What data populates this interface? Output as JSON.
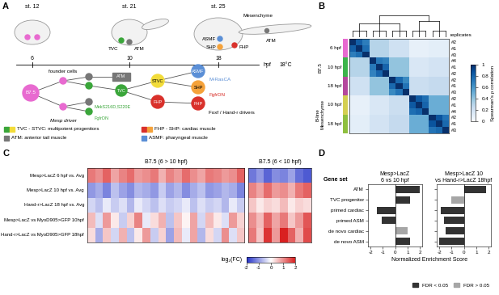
{
  "diagram": {
    "panel": "A",
    "stages": [
      {
        "label": "st. 12",
        "hpf": 6,
        "cells": []
      },
      {
        "label": "st. 21",
        "hpf": 10,
        "cells": [
          "TVC",
          "ATM"
        ]
      },
      {
        "label": "st. 25",
        "hpf": 18,
        "cells": [
          "Mesenchyme",
          "ATM",
          "ASMF",
          "SHP",
          "FHP"
        ]
      }
    ],
    "timeline_unit": "hpf",
    "temperature": "18°C",
    "lineage": {
      "root": "B7.5",
      "founder_label": "founder cells",
      "nodes": {
        "atm": "ATM",
        "tvc": "TVC",
        "stvc": "STVC",
        "fhp1": "FHP",
        "asmf": "ASMF",
        "shp": "SHP",
        "fhp2": "FHP"
      }
    },
    "perturbations": {
      "mek": "MekS216D,S220E",
      "fgfr1": "FgfrDN",
      "mesp": "Mesp driver",
      "mras": "M-RasCA",
      "fgfr2": "FgfrDN",
      "foxf": "Foxf / Hand-r drivers"
    },
    "legend": [
      {
        "label": "TVC - STVC: multipotent progenitors",
        "colors": [
          "#3aa63a",
          "#f2dc3a"
        ]
      },
      {
        "label": "FHP - SHP: cardiac muscle",
        "colors": [
          "#d9312b",
          "#f5a23a"
        ]
      },
      {
        "label": "ATM: anterior tail muscle",
        "colors": [
          "#777777"
        ]
      },
      {
        "label": "ASMF: pharyngeal muscle",
        "colors": [
          "#5b8fd6"
        ]
      }
    ]
  },
  "chart_data": [
    {
      "panel": "B",
      "type": "heatmap",
      "replicate_title": "replicates",
      "rows": [
        {
          "group": "B7.5",
          "label": "6 hpf",
          "color": "#e86ad0",
          "replicates": [
            "#2",
            "#1",
            "#3"
          ]
        },
        {
          "group": "B7.5",
          "label": "10 hpf",
          "color": "#3cb44b",
          "replicates": [
            "#4",
            "#1",
            "#2"
          ]
        },
        {
          "group": "B7.5",
          "label": "18 hpf",
          "color": "#b5489d",
          "replicates": [
            "#2",
            "#1",
            "#3"
          ]
        },
        {
          "group": "B-line\nMesenchyme",
          "label": "10 hpf",
          "color": "#d4cf52",
          "replicates": [
            "#2",
            "#1",
            "#4"
          ]
        },
        {
          "group": "B-line\nMesenchyme",
          "label": "18 hpf",
          "color": "#8fbf3f",
          "replicates": [
            "#2",
            "#1",
            "#3"
          ]
        }
      ],
      "cells": [
        [
          1,
          0.82,
          0.7,
          0.3,
          0.3,
          0.3,
          0.2,
          0.2,
          0.2,
          0.08,
          0.08,
          0.08,
          0.1,
          0.1,
          0.1
        ],
        [
          0.82,
          1,
          0.76,
          0.3,
          0.3,
          0.3,
          0.2,
          0.2,
          0.2,
          0.08,
          0.08,
          0.08,
          0.1,
          0.1,
          0.1
        ],
        [
          0.7,
          0.76,
          1,
          0.3,
          0.3,
          0.3,
          0.2,
          0.2,
          0.2,
          0.08,
          0.08,
          0.08,
          0.1,
          0.1,
          0.1
        ],
        [
          0.3,
          0.3,
          0.3,
          1,
          0.72,
          0.68,
          0.4,
          0.4,
          0.4,
          0.15,
          0.15,
          0.15,
          0.18,
          0.18,
          0.18
        ],
        [
          0.3,
          0.3,
          0.3,
          0.72,
          1,
          0.8,
          0.4,
          0.4,
          0.4,
          0.15,
          0.15,
          0.15,
          0.18,
          0.18,
          0.18
        ],
        [
          0.3,
          0.3,
          0.3,
          0.68,
          0.8,
          1,
          0.4,
          0.4,
          0.4,
          0.15,
          0.15,
          0.15,
          0.18,
          0.18,
          0.18
        ],
        [
          0.2,
          0.2,
          0.2,
          0.4,
          0.4,
          0.4,
          1,
          0.78,
          0.66,
          0.22,
          0.22,
          0.22,
          0.25,
          0.25,
          0.25
        ],
        [
          0.2,
          0.2,
          0.2,
          0.4,
          0.4,
          0.4,
          0.78,
          1,
          0.74,
          0.22,
          0.22,
          0.22,
          0.25,
          0.25,
          0.25
        ],
        [
          0.2,
          0.2,
          0.2,
          0.4,
          0.4,
          0.4,
          0.66,
          0.74,
          1,
          0.22,
          0.22,
          0.22,
          0.25,
          0.25,
          0.25
        ],
        [
          0.08,
          0.08,
          0.08,
          0.15,
          0.15,
          0.15,
          0.22,
          0.22,
          0.22,
          1,
          0.84,
          0.76,
          0.5,
          0.5,
          0.5
        ],
        [
          0.08,
          0.08,
          0.08,
          0.15,
          0.15,
          0.15,
          0.22,
          0.22,
          0.22,
          0.84,
          1,
          0.8,
          0.5,
          0.5,
          0.5
        ],
        [
          0.08,
          0.08,
          0.08,
          0.15,
          0.15,
          0.15,
          0.22,
          0.22,
          0.22,
          0.76,
          0.8,
          1,
          0.5,
          0.5,
          0.5
        ],
        [
          0.1,
          0.1,
          0.1,
          0.18,
          0.18,
          0.18,
          0.25,
          0.25,
          0.25,
          0.5,
          0.5,
          0.5,
          1,
          0.86,
          0.74
        ],
        [
          0.1,
          0.1,
          0.1,
          0.18,
          0.18,
          0.18,
          0.25,
          0.25,
          0.25,
          0.5,
          0.5,
          0.5,
          0.86,
          1,
          0.78
        ],
        [
          0.1,
          0.1,
          0.1,
          0.18,
          0.18,
          0.18,
          0.25,
          0.25,
          0.25,
          0.5,
          0.5,
          0.5,
          0.74,
          0.78,
          1
        ]
      ],
      "colorbar": {
        "label": "Spearman's ρ correlation",
        "range": [
          0,
          1
        ],
        "ticks": [
          0,
          0.2,
          0.4,
          0.6,
          0.8,
          1
        ]
      }
    },
    {
      "panel": "C",
      "type": "heatmap",
      "rows": [
        "Mesp>LacZ 6 hpf vs. Avg",
        "Mesp>LacZ 10 hpf vs. Avg",
        "Hand-r>LacZ 18 hpf vs. Avg",
        "Mesp>LacZ vs MyoD905>GFP 10hpf",
        "Hand-r>LacZ vs MyoD905>GFP 18hpf"
      ],
      "blocks": [
        {
          "title": "B7.5 (6 > 10 hpf)",
          "cells": [
            [
              1.2,
              1.0,
              1.4,
              0.8,
              1.1,
              1.3,
              0.9,
              1.0,
              1.2,
              0.7,
              1.1,
              0.9,
              1.3,
              1.0,
              0.8,
              1.2,
              1.1,
              0.9,
              1.0,
              1.4
            ],
            [
              -1.0,
              -0.8,
              -1.2,
              -0.6,
              -0.9,
              -1.1,
              -0.7,
              -0.8,
              -1.0,
              -0.5,
              -0.9,
              -0.7,
              -1.1,
              -0.8,
              -0.6,
              -1.0,
              -0.9,
              -0.7,
              -0.8,
              -1.2
            ],
            [
              -0.4,
              -0.6,
              -0.2,
              -0.5,
              -0.3,
              -0.7,
              -0.2,
              -0.4,
              -0.6,
              -0.3,
              -0.5,
              -0.4,
              -0.2,
              -0.6,
              -0.3,
              -0.5,
              -0.4,
              -0.7,
              -0.2,
              -0.5
            ],
            [
              0.6,
              -0.3,
              0.9,
              0.2,
              -0.5,
              0.4,
              1.1,
              -0.2,
              0.3,
              0.7,
              -0.6,
              0.5,
              0.1,
              0.8,
              -0.4,
              0.6,
              0.2,
              -0.3,
              0.9,
              0.4
            ],
            [
              0.3,
              -0.8,
              0.5,
              -0.4,
              0.7,
              -0.6,
              0.2,
              0.9,
              -0.5,
              0.4,
              -0.9,
              0.6,
              -0.2,
              0.8,
              -0.7,
              0.3,
              -0.4,
              1.0,
              -0.3,
              0.5
            ]
          ]
        },
        {
          "title": "B7.5 (6 < 10 hpf)",
          "cells": [
            [
              -1.3,
              -1.0,
              -1.5,
              -1.1,
              -1.2,
              -0.9,
              -1.4,
              -1.6
            ],
            [
              1.1,
              0.8,
              1.3,
              0.9,
              1.0,
              0.7,
              1.2,
              1.4
            ],
            [
              0.5,
              0.2,
              0.4,
              0.3,
              0.6,
              0.2,
              0.4,
              0.3
            ],
            [
              1.0,
              0.6,
              1.4,
              0.8,
              1.2,
              0.5,
              0.9,
              1.5
            ],
            [
              1.2,
              0.5,
              1.8,
              0.9,
              2.0,
              1.4,
              0.7,
              1.6
            ]
          ]
        }
      ],
      "colorbar": {
        "label": "log₂(FC)",
        "range": [
          -2,
          2
        ],
        "ticks": [
          -2,
          -1,
          0,
          1,
          2
        ]
      }
    },
    {
      "panel": "D",
      "type": "bar",
      "orientation": "horizontal",
      "y_label": "Gene set",
      "x_label": "Normalized Enrichment Score",
      "categories": [
        "ATM",
        "TVC progenitor",
        "primed cardiac",
        "primed ASM",
        "de novo cardiac",
        "de novo ASM"
      ],
      "legend": "lower right",
      "legend_entries": [
        {
          "name": "FDR < 0.05",
          "color": "#333333"
        },
        {
          "name": "FDR > 0.05",
          "color": "#a6a6a6"
        }
      ],
      "charts": [
        {
          "title": "Mesp>LacZ\n6 vs 10 hpf",
          "values": [
            2.0,
            1.2,
            -1.5,
            -1.1,
            1.0,
            1.2
          ],
          "colors": [
            "#333333",
            "#333333",
            "#333333",
            "#333333",
            "#a6a6a6",
            "#333333"
          ],
          "xlim": [
            -2.2,
            2.2
          ],
          "xticks": [
            -2,
            -1,
            0,
            1,
            2
          ]
        },
        {
          "title": "Mesp>LacZ 10\nvs Hand-r>LacZ 18hpf",
          "values": [
            1.8,
            -1.0,
            -1.9,
            -1.6,
            -1.5,
            -2.0
          ],
          "colors": [
            "#333333",
            "#a6a6a6",
            "#333333",
            "#333333",
            "#333333",
            "#333333"
          ],
          "xlim": [
            -2.2,
            2.2
          ],
          "xticks": [
            -2,
            -1,
            0,
            1,
            2
          ],
          "tick_labels": "x"
        }
      ]
    }
  ]
}
